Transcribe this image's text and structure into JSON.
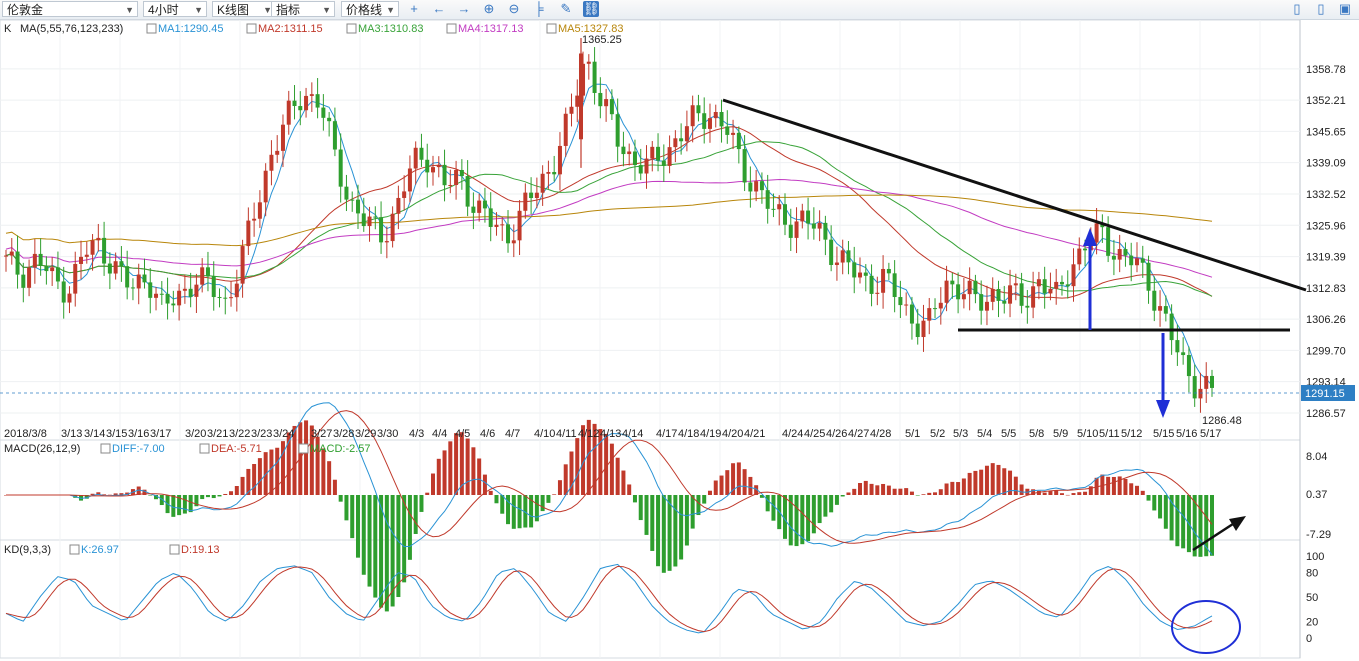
{
  "toolbar": {
    "symbol": "伦敦金",
    "period": "4小时",
    "chart_type": "K线图",
    "indicators": "指标",
    "price_line": "价格线"
  },
  "main_panel": {
    "label": "K",
    "ma_title": "MA(5,55,76,123,233)",
    "ma": [
      {
        "label": "MA1:1290.45",
        "color": "#2a93d5"
      },
      {
        "label": "MA2:1311.15",
        "color": "#c0392b"
      },
      {
        "label": "MA3:1310.83",
        "color": "#39a339"
      },
      {
        "label": "MA4:1317.13",
        "color": "#c23cc2"
      },
      {
        "label": "MA5:1327.83",
        "color": "#b8860b"
      }
    ],
    "high_label": "1365.25",
    "low_label": "1286.48",
    "current_price": "1291.15",
    "price_axis": [
      "1358.78",
      "1352.21",
      "1345.65",
      "1339.09",
      "1332.52",
      "1325.96",
      "1319.39",
      "1312.83",
      "1306.26",
      "1299.70",
      "1293.14",
      "1286.57"
    ],
    "date_axis": [
      "2018/3/8",
      "3/13",
      "3/14",
      "3/15",
      "3/16",
      "3/17",
      "3/20",
      "3/21",
      "3/22",
      "3/23",
      "3/24",
      "3/27",
      "3/28",
      "3/29",
      "3/30",
      "4/3",
      "4/4",
      "4/5",
      "4/6",
      "4/7",
      "4/10",
      "4/11",
      "4/12",
      "4/13",
      "4/14",
      "4/17",
      "4/18",
      "4/19",
      "4/20",
      "4/21",
      "4/24",
      "4/25",
      "4/26",
      "4/27",
      "4/28",
      "5/1",
      "5/2",
      "5/3",
      "5/4",
      "5/5",
      "5/8",
      "5/9",
      "5/10",
      "5/11",
      "5/12",
      "5/15",
      "5/16",
      "5/17"
    ]
  },
  "macd_panel": {
    "title": "MACD(26,12,9)",
    "diff": "DIFF:-7.00",
    "dea": "DEA:-5.71",
    "macd": "MACD:-2.57",
    "axis": [
      "8.04",
      "0.37",
      "-7.29"
    ]
  },
  "kd_panel": {
    "title": "KD(9,3,3)",
    "k": "K:26.97",
    "d": "D:19.13",
    "axis": [
      "100",
      "80",
      "50",
      "20",
      "0"
    ]
  },
  "colors": {
    "up": "#c0392b",
    "down": "#2e9e2e",
    "k_line": "#2a93d5",
    "d_line": "#c0392b",
    "annotation": "#1f2fd6"
  },
  "chart_data": {
    "type": "candlestick",
    "instrument": "伦敦金",
    "timeframe": "4小时",
    "ylim": [
      1286.48,
      1365.25
    ],
    "high": 1365.25,
    "low": 1286.48,
    "last": 1291.15,
    "close_path_approx": [
      1318,
      1316,
      1319,
      1314,
      1313,
      1320,
      1322,
      1317,
      1312,
      1316,
      1308,
      1311,
      1315,
      1313,
      1310,
      1318,
      1330,
      1342,
      1348,
      1354,
      1352,
      1340,
      1331,
      1326,
      1324,
      1330,
      1339,
      1341,
      1334,
      1336,
      1330,
      1326,
      1324,
      1329,
      1334,
      1340,
      1348,
      1362,
      1352,
      1344,
      1340,
      1338,
      1341,
      1345,
      1348,
      1350,
      1346,
      1338,
      1334,
      1328,
      1327,
      1327,
      1324,
      1320,
      1316,
      1314,
      1315,
      1310,
      1306,
      1305,
      1314,
      1313,
      1309,
      1312,
      1311,
      1310,
      1315,
      1310,
      1318,
      1322,
      1324,
      1320,
      1318,
      1314,
      1306,
      1297,
      1293,
      1291
    ],
    "ma_last": {
      "MA1": 1290.45,
      "MA2": 1311.15,
      "MA3": 1310.83,
      "MA4": 1317.13,
      "MA5": 1327.83
    },
    "macd_last": {
      "DIFF": -7.0,
      "DEA": -5.71,
      "MACD": -2.57
    },
    "kd_last": {
      "K": 26.97,
      "D": 19.13
    },
    "kd_path_approx": [
      30,
      20,
      50,
      75,
      70,
      40,
      30,
      20,
      45,
      70,
      80,
      60,
      30,
      20,
      40,
      70,
      85,
      88,
      80,
      50,
      30,
      20,
      50,
      80,
      75,
      40,
      25,
      20,
      45,
      80,
      85,
      60,
      30,
      20,
      50,
      85,
      90,
      70,
      40,
      20,
      10,
      5,
      30,
      60,
      55,
      30,
      20,
      10,
      20,
      50,
      70,
      60,
      40,
      20,
      15,
      20,
      40,
      65,
      70,
      60,
      45,
      30,
      25,
      50,
      80,
      88,
      70,
      40,
      20,
      10,
      15,
      27
    ]
  }
}
